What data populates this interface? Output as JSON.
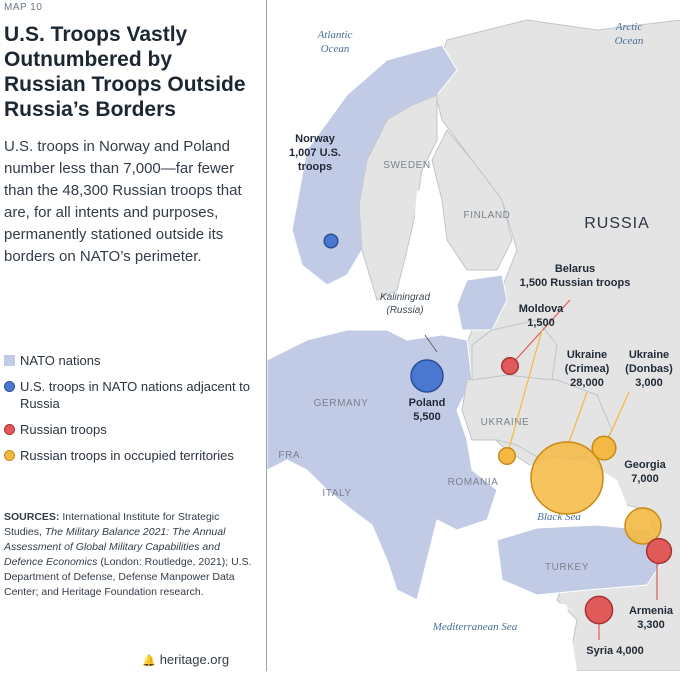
{
  "header": {
    "map_number": "MAP 10",
    "title": "U.S. Troops Vastly Outnumbered by Russian Troops Outside Russia’s Borders",
    "description": "U.S. troops in Norway and Poland number less than 7,000—far fewer than the 48,300 Russian troops that are, for all intents and purposes, permanently stationed outside its borders on NATO’s perimeter."
  },
  "legend": [
    {
      "label": "NATO nations",
      "shape": "square",
      "color": "#c2cbe6"
    },
    {
      "label": "U.S. troops in NATO nations adjacent to Russia",
      "shape": "circle",
      "color": "#4a78d0"
    },
    {
      "label": "Russian troops",
      "shape": "circle",
      "color": "#e05a5a"
    },
    {
      "label": "Russian troops in occupied territories",
      "shape": "circle",
      "color": "#f4b942"
    }
  ],
  "sources": {
    "label": "SOURCES:",
    "text1": "International Institute for Strategic Studies,",
    "italic": "The Military Balance 2021: The Annual Assessment of Global Military Capabilities and Defence Economics",
    "text2": "(London: Routledge, 2021); U.S. Department of Defense, Defense Manpower Data Center; and Heritage Foundation research."
  },
  "footer": {
    "site": "heritage.org"
  },
  "map": {
    "seas": {
      "atlantic_1": "Atlantic",
      "atlantic_2": "Ocean",
      "arctic_1": "Arctic",
      "arctic_2": "Ocean",
      "black": "Black Sea",
      "mediterranean": "Mediterranean Sea"
    },
    "countries": {
      "sweden": "SWEDEN",
      "finland": "FINLAND",
      "russia": "RUSSIA",
      "germany": "GERMANY",
      "france": "FRA.",
      "ukraine": "UKRAINE",
      "romania": "ROMANIA",
      "italy": "ITALY",
      "turkey": "TURKEY"
    },
    "kaliningrad_1": "Kaliningrad",
    "kaliningrad_2": "(Russia)",
    "markers": [
      {
        "id": "norway",
        "line1": "Norway",
        "line2": "1,007 U.S.",
        "line3": "troops",
        "troops": 1007,
        "type": "us"
      },
      {
        "id": "poland",
        "line1": "Poland",
        "line2": "5,500",
        "troops": 5500,
        "type": "us"
      },
      {
        "id": "belarus",
        "line1": "Belarus",
        "line2": "1,500 Russian troops",
        "troops": 1500,
        "type": "russian"
      },
      {
        "id": "moldova",
        "line1": "Moldova",
        "line2": "1,500",
        "troops": 1500,
        "type": "occupied"
      },
      {
        "id": "crimea",
        "line1": "Ukraine",
        "line2": "(Crimea)",
        "line3": "28,000",
        "troops": 28000,
        "type": "occupied"
      },
      {
        "id": "donbas",
        "line1": "Ukraine",
        "line2": "(Donbas)",
        "line3": "3,000",
        "troops": 3000,
        "type": "occupied"
      },
      {
        "id": "georgia",
        "line1": "Georgia",
        "line2": "7,000",
        "troops": 7000,
        "type": "occupied"
      },
      {
        "id": "armenia",
        "line1": "Armenia",
        "line2": "3,300",
        "troops": 3300,
        "type": "russian"
      },
      {
        "id": "syria",
        "line1": "Syria 4,000",
        "troops": 4000,
        "type": "russian"
      }
    ]
  }
}
